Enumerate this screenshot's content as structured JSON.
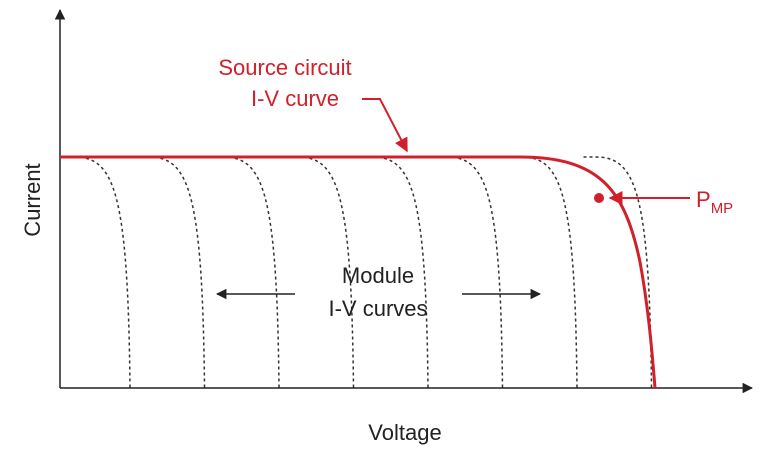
{
  "axes": {
    "x_label": "Voltage",
    "y_label": "Current"
  },
  "annotations": {
    "source_curve": [
      "Source circuit",
      "I-V curve"
    ],
    "module_curves": [
      "Module",
      "I-V curves"
    ],
    "pmp": {
      "main": "P",
      "subscript": "MP"
    }
  }
}
